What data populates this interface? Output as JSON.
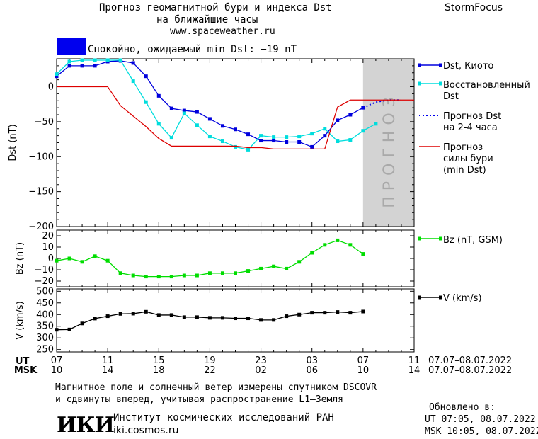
{
  "header": {
    "title1": "Прогноз геомагнитной бури и индекса Dst",
    "title2": "на ближайшие часы",
    "url": "www.spaceweather.ru",
    "brand": "StormFocus",
    "status": "Спокойно, ожидаемый min Dst: −19 nT",
    "status_color": "#0000ee"
  },
  "forecast_band_label": "ПРОГНОЗ",
  "footer": {
    "line1": "Магнитное поле и солнечный ветер измерены спутником DSCOVR",
    "line2": "и сдвинуты вперед, учитывая распространение L1–Земля",
    "updated_label": "Обновлено в:",
    "updated_ut": "UT  07:05, 08.07.2022",
    "updated_msk": "MSK 10:05, 08.07.2022",
    "institute": "Институт космических исследований РАН",
    "site": "iki.cosmos.ru",
    "logo_text": "ИКИ"
  },
  "chart_data": [
    {
      "type": "line",
      "panel": "dst",
      "ylabel": "Dst (nT)",
      "ylim": [
        -200,
        40
      ],
      "yticks": [
        0,
        -50,
        -100,
        -150,
        -200
      ],
      "xlim": [
        0,
        28
      ],
      "forecast_band_x": [
        24,
        28
      ],
      "series": [
        {
          "name": "Dst, Киото",
          "color": "#0000dd",
          "marker": "square",
          "x": [
            0,
            1,
            2,
            3,
            4,
            5,
            6,
            7,
            8,
            9,
            10,
            11,
            12,
            13,
            14,
            15,
            16,
            17,
            18,
            19,
            20,
            21,
            22,
            23,
            24
          ],
          "y": [
            15,
            30,
            30,
            30,
            36,
            37,
            34,
            15,
            -13,
            -31,
            -34,
            -36,
            -46,
            -56,
            -61,
            -68,
            -77,
            -77,
            -79,
            -79,
            -86,
            -70,
            -48,
            -40,
            -30
          ]
        },
        {
          "name": "Восстановленный Dst",
          "color": "#00dddd",
          "marker": "square",
          "x": [
            0,
            1,
            2,
            3,
            4,
            5,
            6,
            7,
            8,
            9,
            10,
            11,
            12,
            13,
            14,
            15,
            16,
            17,
            18,
            19,
            20,
            21,
            22,
            23,
            24,
            25
          ],
          "y": [
            18,
            36,
            38,
            38,
            38,
            38,
            8,
            -22,
            -53,
            -73,
            -38,
            -55,
            -71,
            -78,
            -86,
            -90,
            -70,
            -72,
            -72,
            -71,
            -67,
            -60,
            -78,
            -76,
            -63,
            -53
          ]
        },
        {
          "name": "Прогноз Dst на 2-4 часа",
          "color": "#0000ee",
          "style": "dotted",
          "x": [
            24,
            25,
            26,
            27
          ],
          "y": [
            -30,
            -22,
            -19,
            -19
          ]
        },
        {
          "name": "Прогноз силы бури (min Dst)",
          "color": "#dd0000",
          "x": [
            0,
            4,
            5,
            6,
            7,
            8,
            9,
            10,
            11,
            12,
            13,
            14,
            15,
            16,
            17,
            18,
            19,
            20,
            21,
            22,
            23,
            24,
            25,
            26,
            27,
            28
          ],
          "y": [
            0,
            0,
            -27,
            -42,
            -57,
            -74,
            -85,
            -85,
            -85,
            -85,
            -85,
            -85,
            -87,
            -87,
            -89,
            -89,
            -89,
            -89,
            -89,
            -29,
            -19,
            -19,
            -19,
            -19,
            -19,
            -19
          ]
        }
      ]
    },
    {
      "type": "line",
      "panel": "bz",
      "ylabel": "Bz (nT)",
      "ylim": [
        -25,
        25
      ],
      "yticks": [
        20,
        10,
        0,
        -10,
        -20
      ],
      "xlim": [
        0,
        28
      ],
      "series": [
        {
          "name": "Bz (nT, GSM)",
          "color": "#00dd00",
          "marker": "square",
          "x": [
            0,
            1,
            2,
            3,
            4,
            5,
            6,
            7,
            8,
            9,
            10,
            11,
            12,
            13,
            14,
            15,
            16,
            17,
            18,
            19,
            20,
            21,
            22,
            23,
            24,
            25
          ],
          "y": [
            -2,
            0,
            -3,
            2,
            -2,
            -13,
            -15,
            -16,
            -16,
            -16,
            -15,
            -15,
            -13,
            -13,
            -13,
            -11,
            -9,
            -7,
            -9,
            -3,
            5,
            12,
            16,
            12,
            4,
            null
          ]
        }
      ]
    },
    {
      "type": "line",
      "panel": "v",
      "ylabel": "V (km/s)",
      "ylim": [
        240,
        510
      ],
      "yticks": [
        500,
        450,
        400,
        350,
        300,
        250
      ],
      "xlim": [
        0,
        28
      ],
      "series": [
        {
          "name": "V (km/s)",
          "color": "#000000",
          "marker": "square",
          "x": [
            0,
            1,
            2,
            3,
            4,
            5,
            6,
            7,
            8,
            9,
            10,
            11,
            12,
            13,
            14,
            15,
            16,
            17,
            18,
            19,
            20,
            21,
            22,
            23,
            24,
            25
          ],
          "y": [
            335,
            336,
            362,
            383,
            393,
            403,
            404,
            412,
            398,
            398,
            389,
            389,
            386,
            386,
            384,
            384,
            377,
            377,
            393,
            400,
            408,
            408,
            411,
            408,
            413,
            null
          ]
        }
      ]
    }
  ],
  "x_axis": {
    "ut_label": "UT",
    "msk_label": "MSK",
    "ut_ticks": [
      "07",
      "11",
      "15",
      "19",
      "23",
      "03",
      "07",
      "11"
    ],
    "msk_ticks": [
      "10",
      "14",
      "18",
      "22",
      "02",
      "06",
      "10",
      "14"
    ],
    "ut_range": "07.07–08.07.2022",
    "msk_range": "07.07–08.07.2022"
  }
}
